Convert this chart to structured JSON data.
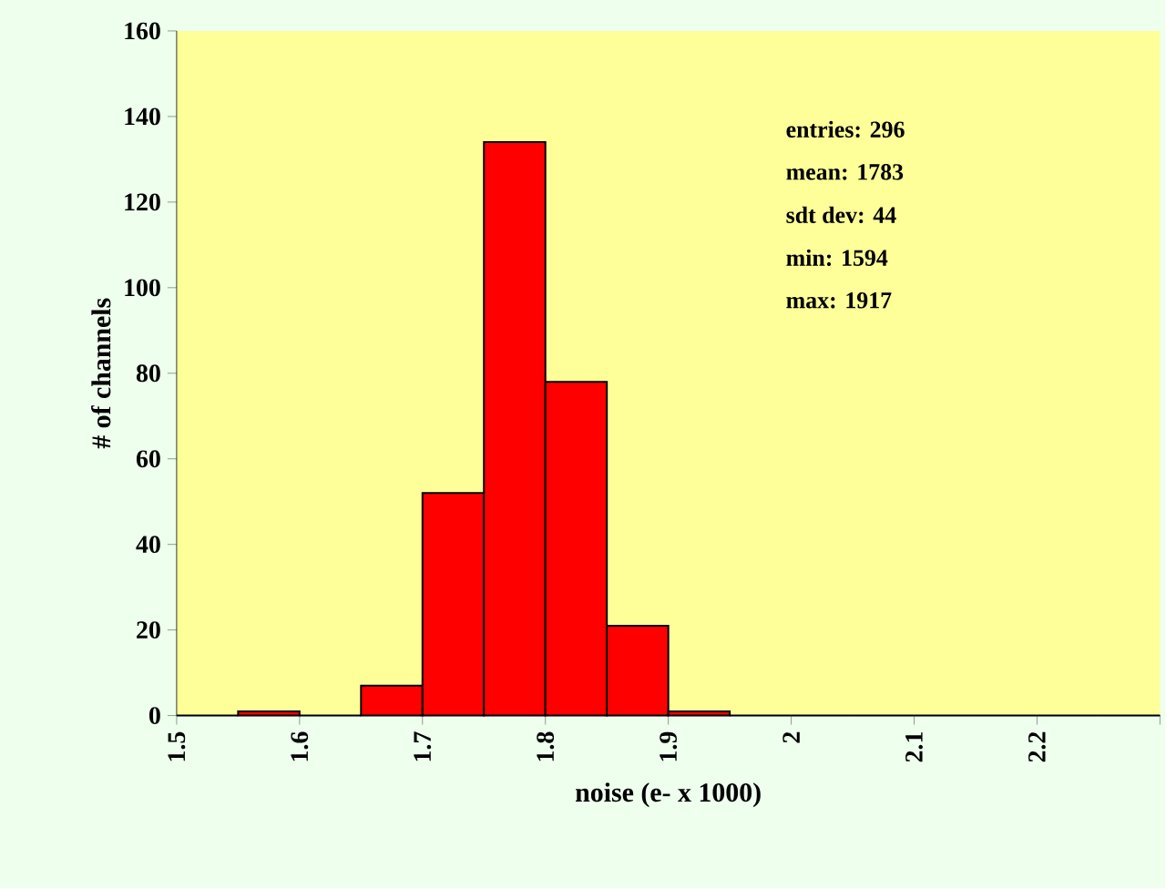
{
  "chart_data": {
    "type": "histogram",
    "xlabel": "noise (e- x 1000)",
    "ylabel": "# of channels",
    "bins": [
      1.5,
      1.55,
      1.6,
      1.65,
      1.7,
      1.75,
      1.8,
      1.85,
      1.9,
      1.95,
      2.0,
      2.05,
      2.1,
      2.15,
      2.2,
      2.25,
      2.3
    ],
    "values": [
      0,
      1,
      0,
      7,
      52,
      134,
      78,
      21,
      1,
      0,
      0,
      0,
      0,
      0,
      0,
      0
    ],
    "color": "#ff0000",
    "xlim": [
      1.5,
      2.3
    ],
    "xticks": [
      1.5,
      1.6,
      1.7,
      1.8,
      1.9,
      2,
      2.1,
      2.2,
      {
        "value": 2.3,
        "label": null
      }
    ],
    "ylim": [
      0,
      160
    ],
    "yticks": [
      0,
      20,
      40,
      60,
      80,
      100,
      120,
      140,
      160
    ],
    "annotations": [
      "entries: 296",
      "mean: 1783",
      "sdt dev: 44",
      "min: 1594",
      "max: 1917"
    ]
  }
}
